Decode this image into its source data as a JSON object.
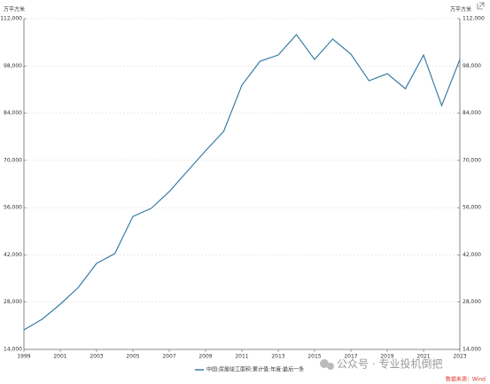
{
  "chart_data": {
    "type": "line",
    "y_label": "万平方米",
    "y2_label": "万平方米",
    "x": [
      1999,
      2000,
      2001,
      2002,
      2003,
      2004,
      2005,
      2006,
      2007,
      2008,
      2009,
      2010,
      2011,
      2012,
      2013,
      2014,
      2015,
      2016,
      2017,
      2018,
      2019,
      2020,
      2021,
      2022,
      2023
    ],
    "xlim": [
      1999,
      2023
    ],
    "xticks": [
      1999,
      2001,
      2003,
      2005,
      2007,
      2009,
      2011,
      2013,
      2015,
      2017,
      2019,
      2021,
      2023
    ],
    "series": [
      {
        "name": "中国:房屋竣工面积:累计值:年度:最后一条",
        "color": "#3a7ca5",
        "values": [
          19780,
          22930,
          27400,
          32390,
          39480,
          42370,
          53400,
          55770,
          60760,
          66800,
          72850,
          78630,
          92290,
          99380,
          101220,
          107260,
          99900,
          105950,
          101480,
          93600,
          95700,
          91240,
          101220,
          86240,
          99900
        ]
      }
    ],
    "ylim": [
      14000,
      112000
    ],
    "yticks": [
      {
        "value": 14000,
        "label": "14,000"
      },
      {
        "value": 28000,
        "label": "28,000"
      },
      {
        "value": 42000,
        "label": "42,000"
      },
      {
        "value": 56000,
        "label": "56,000"
      },
      {
        "value": 70000,
        "label": "70,000"
      },
      {
        "value": 84000,
        "label": "84,000"
      },
      {
        "value": 98000,
        "label": "98,000"
      },
      {
        "value": 112000,
        "label": "112,000"
      }
    ],
    "y2lim": [
      14000,
      112000
    ],
    "y2ticks": [
      {
        "value": 14000,
        "label": "14,000"
      },
      {
        "value": 28000,
        "label": "28,000"
      },
      {
        "value": 42000,
        "label": "42,000"
      },
      {
        "value": 56000,
        "label": "56,000"
      },
      {
        "value": 70000,
        "label": "70,000"
      },
      {
        "value": 84000,
        "label": "84,000"
      },
      {
        "value": 98000,
        "label": "98,000"
      },
      {
        "value": 112000,
        "label": "112,000"
      }
    ],
    "grid": true,
    "legend": "bottom",
    "source": "数据来源：Wind",
    "watermark": "公众号 · 专业投机倒把"
  }
}
